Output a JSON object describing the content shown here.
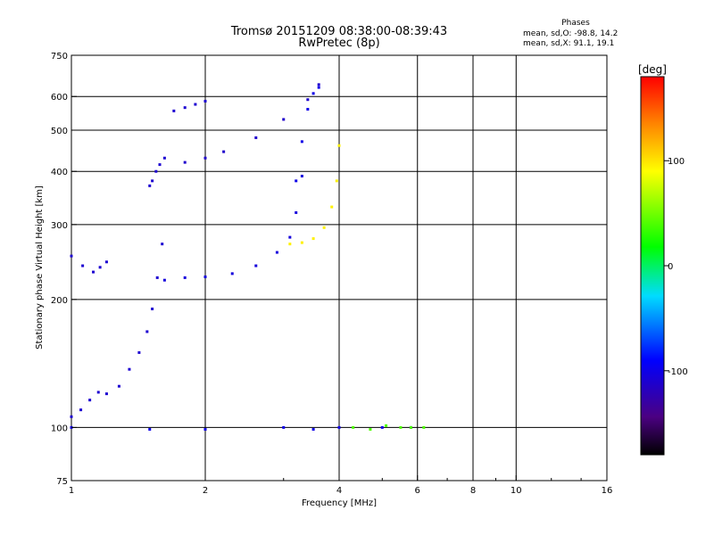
{
  "header": {
    "title_line1": "Tromsø 20151209 08:38:00-08:39:43",
    "title_line2": "RwPretec (8p)"
  },
  "phase_stats": {
    "label": "Phases",
    "o_mode": "mean, sd,O: -98.8, 14.2",
    "x_mode": "mean, sd,X:  91.1, 19.1"
  },
  "colorbar": {
    "unit_label": "[deg]",
    "range": [
      -180,
      180
    ],
    "ticks": [
      {
        "value": 100,
        "label": "100"
      },
      {
        "value": 0,
        "label": "0"
      },
      {
        "value": -100,
        "label": "-100"
      }
    ]
  },
  "chart_data": {
    "type": "scatter",
    "xlabel": "Frequency [MHz]",
    "ylabel": "Stationary phase Virtual Height [km]",
    "x_scale": "log",
    "y_scale": "log",
    "xlim": [
      1,
      16
    ],
    "ylim": [
      75,
      750
    ],
    "grid": true,
    "x_ticks": [
      {
        "value": 1,
        "label": "1"
      },
      {
        "value": 2,
        "label": "2"
      },
      {
        "value": 4,
        "label": "4"
      },
      {
        "value": 6,
        "label": "6"
      },
      {
        "value": 8,
        "label": "8"
      },
      {
        "value": 10,
        "label": "10"
      },
      {
        "value": 16,
        "label": "16"
      }
    ],
    "x_minor_ticks": [
      3,
      5,
      7,
      9,
      12,
      14
    ],
    "y_ticks": [
      {
        "value": 75,
        "label": "75"
      },
      {
        "value": 100,
        "label": "100"
      },
      {
        "value": 200,
        "label": "200"
      },
      {
        "value": 300,
        "label": "300"
      },
      {
        "value": 400,
        "label": "400"
      },
      {
        "value": 500,
        "label": "500"
      },
      {
        "value": 600,
        "label": "600"
      },
      {
        "value": 750,
        "label": "750"
      }
    ],
    "x_gridlines": [
      2,
      4,
      6,
      8,
      10
    ],
    "y_gridlines": [
      100,
      200,
      300,
      400,
      500,
      600
    ],
    "color_encoding": "phase [deg]",
    "traces": [
      {
        "x": [
          1.0,
          1.05,
          1.1,
          1.15,
          1.2,
          1.28,
          1.35,
          1.42,
          1.48,
          1.52,
          1.56,
          1.6
        ],
        "y": [
          106,
          110,
          116,
          121,
          120,
          125,
          137,
          150,
          168,
          190,
          225,
          270
        ],
        "phase": -110
      },
      {
        "x": [
          1.0,
          1.06,
          1.12,
          1.16,
          1.2
        ],
        "y": [
          253,
          240,
          232,
          238,
          245
        ],
        "phase": -110
      },
      {
        "x": [
          1.5,
          1.52,
          1.55,
          1.58,
          1.62
        ],
        "y": [
          370,
          380,
          400,
          415,
          430
        ],
        "phase": -110
      },
      {
        "x": [
          1.62,
          1.8,
          2.0,
          2.3,
          2.6,
          2.9,
          3.1,
          3.2,
          3.3
        ],
        "y": [
          222,
          225,
          226,
          230,
          240,
          258,
          280,
          320,
          390
        ],
        "phase": -105
      },
      {
        "x": [
          3.2,
          3.3,
          3.4,
          3.5,
          3.6
        ],
        "y": [
          380,
          470,
          560,
          610,
          630
        ],
        "phase": -100
      },
      {
        "x": [
          1.8,
          2.0,
          2.2,
          2.6,
          3.0,
          3.4,
          3.6
        ],
        "y": [
          420,
          430,
          445,
          480,
          530,
          590,
          640
        ],
        "phase": -112
      },
      {
        "x": [
          1.7,
          1.8,
          1.9,
          2.0
        ],
        "y": [
          555,
          565,
          575,
          585
        ],
        "phase": -110
      },
      {
        "x": [
          3.1,
          3.3,
          3.5,
          3.7,
          3.85,
          3.95,
          4.0
        ],
        "y": [
          270,
          272,
          278,
          295,
          330,
          380,
          460
        ],
        "phase": 95
      },
      {
        "x": [
          1.0,
          1.5,
          2.0,
          3.0,
          3.5,
          4.0,
          5.0,
          5.8
        ],
        "y": [
          100,
          99,
          99,
          100,
          99,
          100,
          100,
          100
        ],
        "phase": -100
      },
      {
        "x": [
          4.3,
          4.7,
          5.1,
          5.5,
          5.8,
          6.2
        ],
        "y": [
          100,
          99,
          101,
          100,
          100,
          100
        ],
        "phase": 40
      }
    ]
  }
}
